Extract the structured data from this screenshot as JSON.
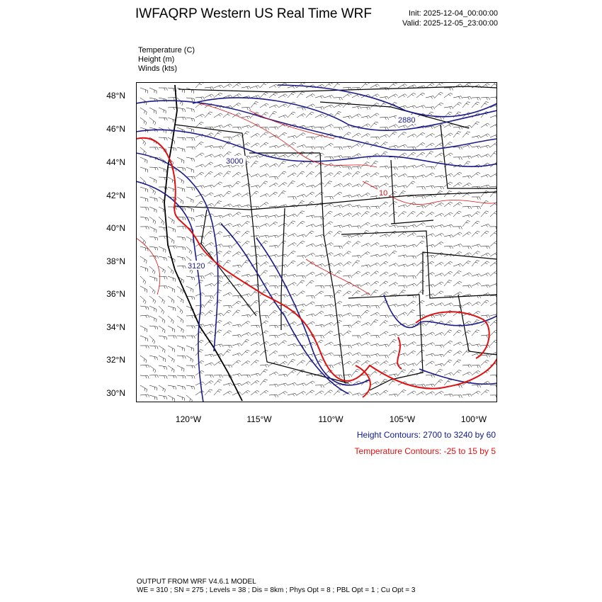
{
  "header": {
    "title": "IWFAQRP Western US Real Time WRF",
    "init": "Init: 2025-12-04_00:00:00",
    "valid": "Valid: 2025-12-05_23:00:00"
  },
  "fields": [
    "Temperature   (C)",
    "Height   (m)",
    "Winds   (kts)"
  ],
  "map": {
    "lat_labels": [
      "48°N",
      "46°N",
      "44°N",
      "42°N",
      "40°N",
      "38°N",
      "36°N",
      "34°N",
      "32°N",
      "30°N"
    ],
    "lon_labels": [
      "120°W",
      "115°W",
      "110°W",
      "105°W",
      "100°W"
    ],
    "contour_labels": {
      "height": [
        "2880",
        "3000",
        "3120"
      ],
      "temperature": [
        "10"
      ]
    },
    "colors": {
      "height": "#1a1a8c",
      "temperature": "#e01010",
      "borders": "#000000",
      "barbs": "#000000"
    }
  },
  "legend": {
    "height": "Height Contours: 2700 to 3240 by 60",
    "temperature": "Temperature Contours: -25 to 15 by 5"
  },
  "footer": {
    "line1": "OUTPUT FROM WRF V4.6.1 MODEL",
    "line2": "WE = 310 ; SN = 275 ; Levels = 38 ; Dis = 8km ; Phys Opt = 8 ; PBL Opt = 1 ; Cu Opt = 3"
  }
}
